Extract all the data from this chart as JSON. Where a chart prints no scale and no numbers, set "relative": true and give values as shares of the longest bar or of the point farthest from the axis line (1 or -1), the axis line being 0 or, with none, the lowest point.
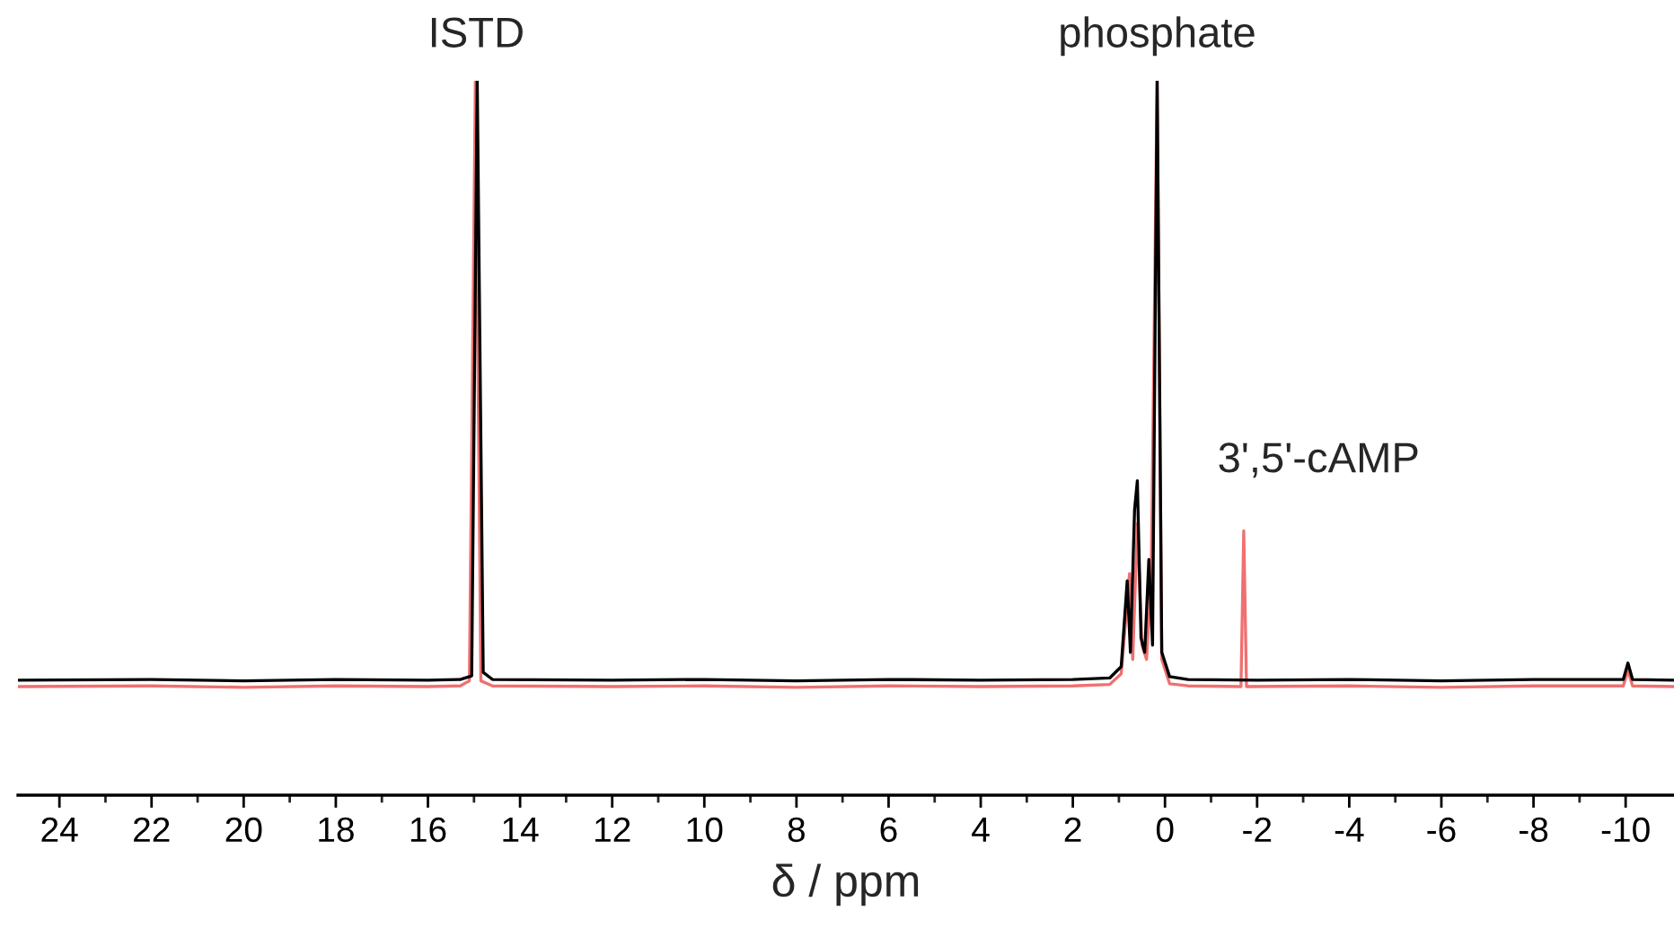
{
  "chart_data": {
    "type": "line",
    "relative": true,
    "xlabel": "δ / ppm",
    "xlim": [
      24.9,
      -11.05
    ],
    "xticks": [
      24,
      {
        "value": 23,
        "label": null
      },
      22,
      {
        "value": 21,
        "label": null
      },
      20,
      {
        "value": 19,
        "label": null
      },
      18,
      {
        "value": 17,
        "label": null
      },
      16,
      {
        "value": 15,
        "label": null
      },
      14,
      {
        "value": 13,
        "label": null
      },
      12,
      {
        "value": 11,
        "label": null
      },
      10,
      {
        "value": 9,
        "label": null
      },
      8,
      {
        "value": 7,
        "label": null
      },
      6,
      {
        "value": 5,
        "label": null
      },
      4,
      {
        "value": 3,
        "label": null
      },
      2,
      {
        "value": 1,
        "label": null
      },
      0,
      {
        "value": -1,
        "label": null
      },
      -2,
      {
        "value": -3,
        "label": null
      },
      -4,
      {
        "value": -5,
        "label": null
      },
      -6,
      {
        "value": -7,
        "label": null
      },
      -8,
      {
        "value": -9,
        "label": null
      },
      -10
    ],
    "grid": false,
    "marker": "none",
    "line_style": "solid",
    "tick_labels": "x",
    "annotations": [
      {
        "text": "ISTD",
        "x": 14.95,
        "y": 1.0
      },
      {
        "text": "phosphate",
        "x": 0.17,
        "y": 1.0
      },
      {
        "text": "3',5'-cAMP",
        "x": -1.71,
        "y": 0.37
      }
    ],
    "series": [
      {
        "color": "#f07070",
        "x": [
          24.9,
          22,
          20,
          18,
          16,
          15.3,
          15.1,
          14.97,
          14.85,
          14.6,
          12,
          10,
          8,
          6,
          4,
          2,
          1.2,
          0.95,
          0.77,
          0.7,
          0.6,
          0.5,
          0.4,
          0.3,
          0.17,
          0.07,
          -0.1,
          -0.5,
          -1.65,
          -1.71,
          -1.77,
          -4,
          -6,
          -8,
          -9.95,
          -10.05,
          -10.15,
          -11.05
        ],
        "values": [
          0.152,
          0.153,
          0.151,
          0.153,
          0.152,
          0.153,
          0.16,
          1.0,
          0.16,
          0.153,
          0.152,
          0.153,
          0.151,
          0.153,
          0.152,
          0.153,
          0.155,
          0.17,
          0.31,
          0.19,
          0.38,
          0.21,
          0.19,
          0.3,
          1.0,
          0.19,
          0.156,
          0.153,
          0.152,
          0.37,
          0.152,
          0.153,
          0.151,
          0.153,
          0.153,
          0.175,
          0.153,
          0.152
        ]
      },
      {
        "color": "#000000",
        "x": [
          24.9,
          22,
          20,
          18,
          16,
          15.3,
          15.05,
          14.93,
          14.8,
          14.6,
          12,
          10,
          8,
          6,
          4,
          2,
          1.2,
          0.95,
          0.82,
          0.75,
          0.66,
          0.6,
          0.52,
          0.44,
          0.35,
          0.27,
          0.17,
          0.07,
          -0.1,
          -0.5,
          -2,
          -4,
          -6,
          -8,
          -9.95,
          -10.05,
          -10.15,
          -11.05
        ],
        "values": [
          0.161,
          0.162,
          0.16,
          0.162,
          0.161,
          0.162,
          0.167,
          1.0,
          0.172,
          0.162,
          0.161,
          0.162,
          0.16,
          0.162,
          0.161,
          0.162,
          0.164,
          0.18,
          0.3,
          0.2,
          0.4,
          0.44,
          0.22,
          0.2,
          0.33,
          0.21,
          1.0,
          0.2,
          0.166,
          0.162,
          0.161,
          0.162,
          0.16,
          0.162,
          0.162,
          0.185,
          0.162,
          0.161
        ]
      }
    ]
  }
}
